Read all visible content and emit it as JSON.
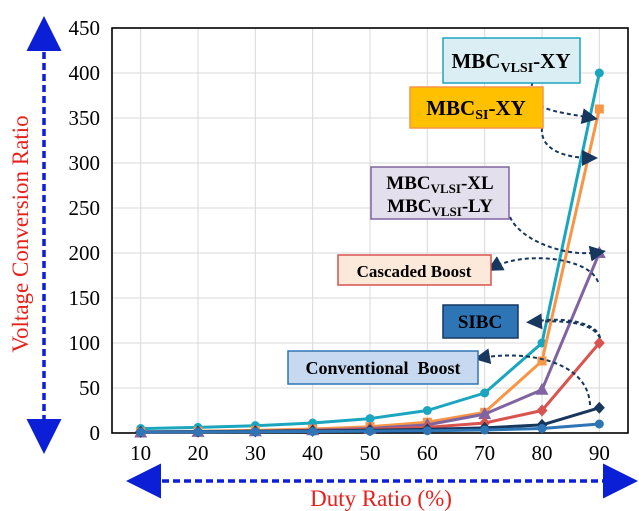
{
  "chart_data": {
    "type": "line",
    "xlabel": "Duty Ratio (%)",
    "ylabel": "Voltage Conversion Ratio",
    "xlim": [
      5,
      95
    ],
    "ylim": [
      0,
      450
    ],
    "x": [
      10,
      20,
      30,
      40,
      50,
      60,
      70,
      80,
      90
    ],
    "xticks": [
      "10",
      "20",
      "30",
      "40",
      "50",
      "60",
      "70",
      "80",
      "90"
    ],
    "yticks": [
      "0",
      "50",
      "100",
      "150",
      "200",
      "250",
      "300",
      "350",
      "400",
      "450"
    ],
    "grid": true,
    "series": [
      {
        "name": "MBC-VLSI-XY",
        "color": "#1aa6bf",
        "marker": "circle",
        "values": [
          4.94,
          6.25,
          8.16,
          11.11,
          16,
          25,
          44.44,
          100,
          400
        ]
      },
      {
        "name": "MBC-SI-XY",
        "color": "#f79646",
        "marker": "square",
        "values": [
          1.2,
          1.9,
          2.9,
          4.4,
          7,
          12,
          23,
          80,
          360
        ]
      },
      {
        "name": "MBC-VLSI-XL / MBC-VLSI-LY",
        "color": "#8064a2",
        "marker": "triangle",
        "values": [
          0.62,
          1.25,
          2.0,
          3.0,
          5.0,
          9.0,
          21,
          48,
          200
        ]
      },
      {
        "name": "Cascaded Boost",
        "color": "#d9534f",
        "marker": "diamond",
        "values": [
          1.23,
          1.56,
          2.04,
          2.78,
          4,
          6.25,
          11.11,
          25,
          100
        ]
      },
      {
        "name": "SIBC",
        "color": "#17375e",
        "marker": "diamond",
        "values": [
          1.22,
          1.5,
          1.86,
          2.33,
          3,
          4,
          5.67,
          9,
          28
        ]
      },
      {
        "name": "Conventional Boost",
        "color": "#2e75b6",
        "marker": "circle",
        "values": [
          1.11,
          1.25,
          1.43,
          1.67,
          2,
          2.5,
          3.33,
          5,
          10
        ]
      }
    ],
    "annotations": [
      {
        "main": "MBC",
        "sub": "VLSI",
        "tail": "-XY",
        "fill": "#daeef3",
        "stroke": "#1aa6bf"
      },
      {
        "main": "MBC",
        "sub": "SI",
        "tail": "-XY",
        "fill": "#ffc000",
        "stroke": "#f79646"
      },
      {
        "main": "MBC",
        "sub": "VLSI",
        "tail": "-XL",
        "main2": "MBC",
        "sub2": "VLSI",
        "tail2": "-LY",
        "fill": "#e4dfec",
        "stroke": "#8064a2"
      },
      {
        "text": "Cascaded Boost",
        "fill": "#fde9d9",
        "stroke": "#d9534f"
      },
      {
        "text": "SIBC",
        "fill": "#2e75b6",
        "stroke": "#17375e"
      },
      {
        "text": "Conventional  Boost",
        "fill": "#c6d9f1",
        "stroke": "#2e75b6"
      }
    ]
  }
}
